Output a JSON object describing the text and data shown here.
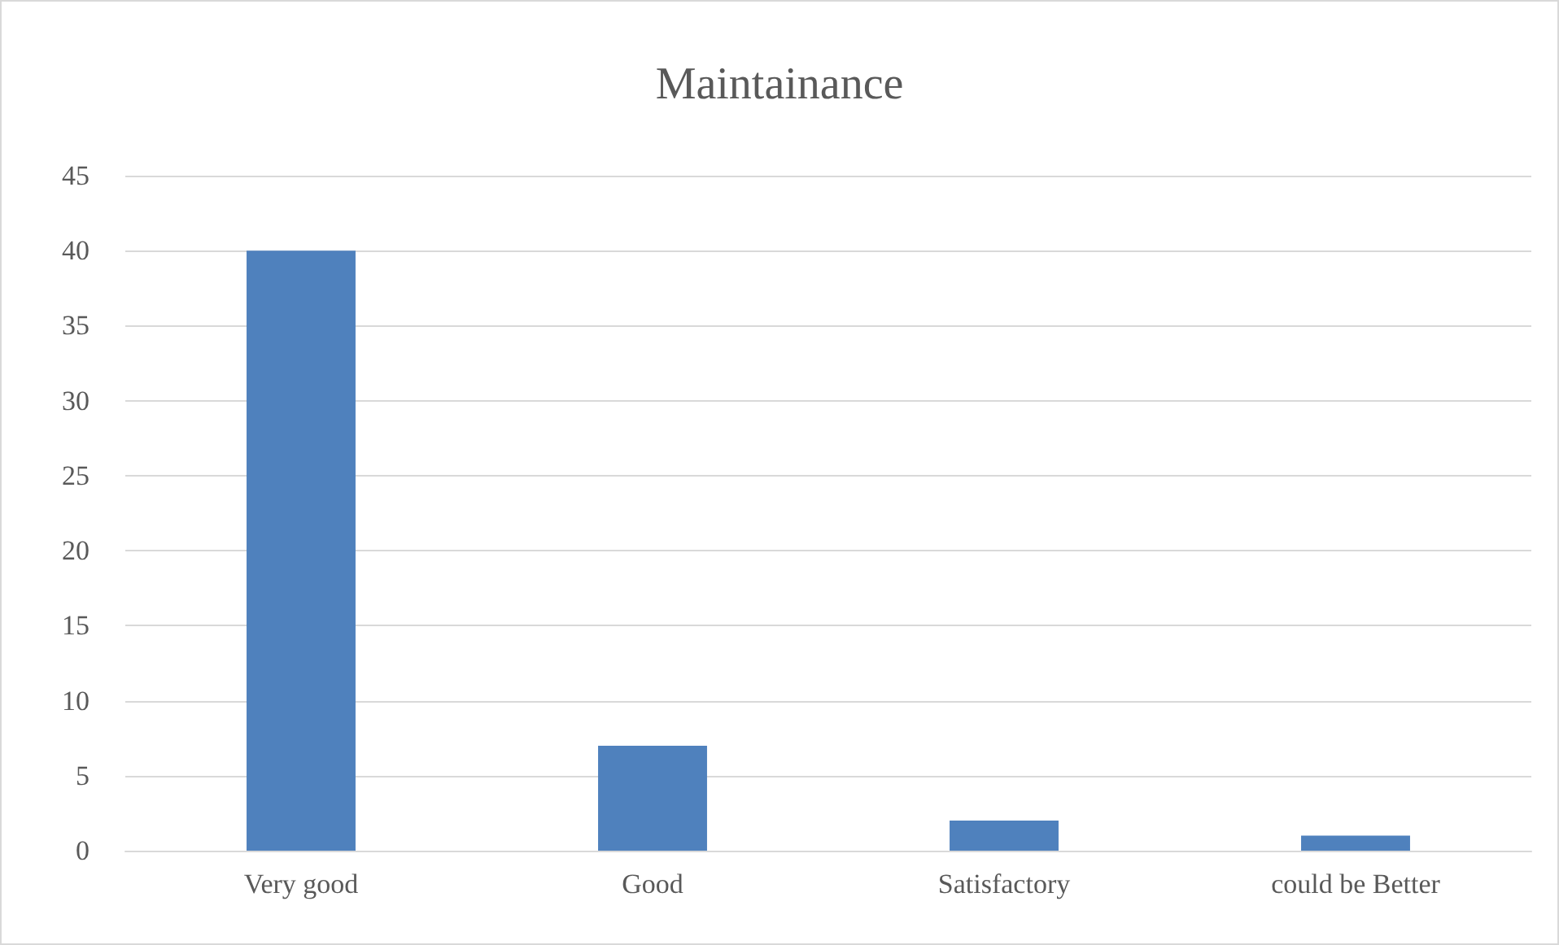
{
  "chart_data": {
    "type": "bar",
    "title": "Maintainance",
    "categories": [
      "Very good",
      "Good",
      "Satisfactory",
      "could be Better"
    ],
    "values": [
      40,
      7,
      2,
      1
    ],
    "color": "#4f81bd",
    "ylim": [
      0,
      45
    ],
    "yticks": [
      0,
      5,
      10,
      15,
      20,
      25,
      30,
      35,
      40,
      45
    ],
    "grid": "y"
  }
}
